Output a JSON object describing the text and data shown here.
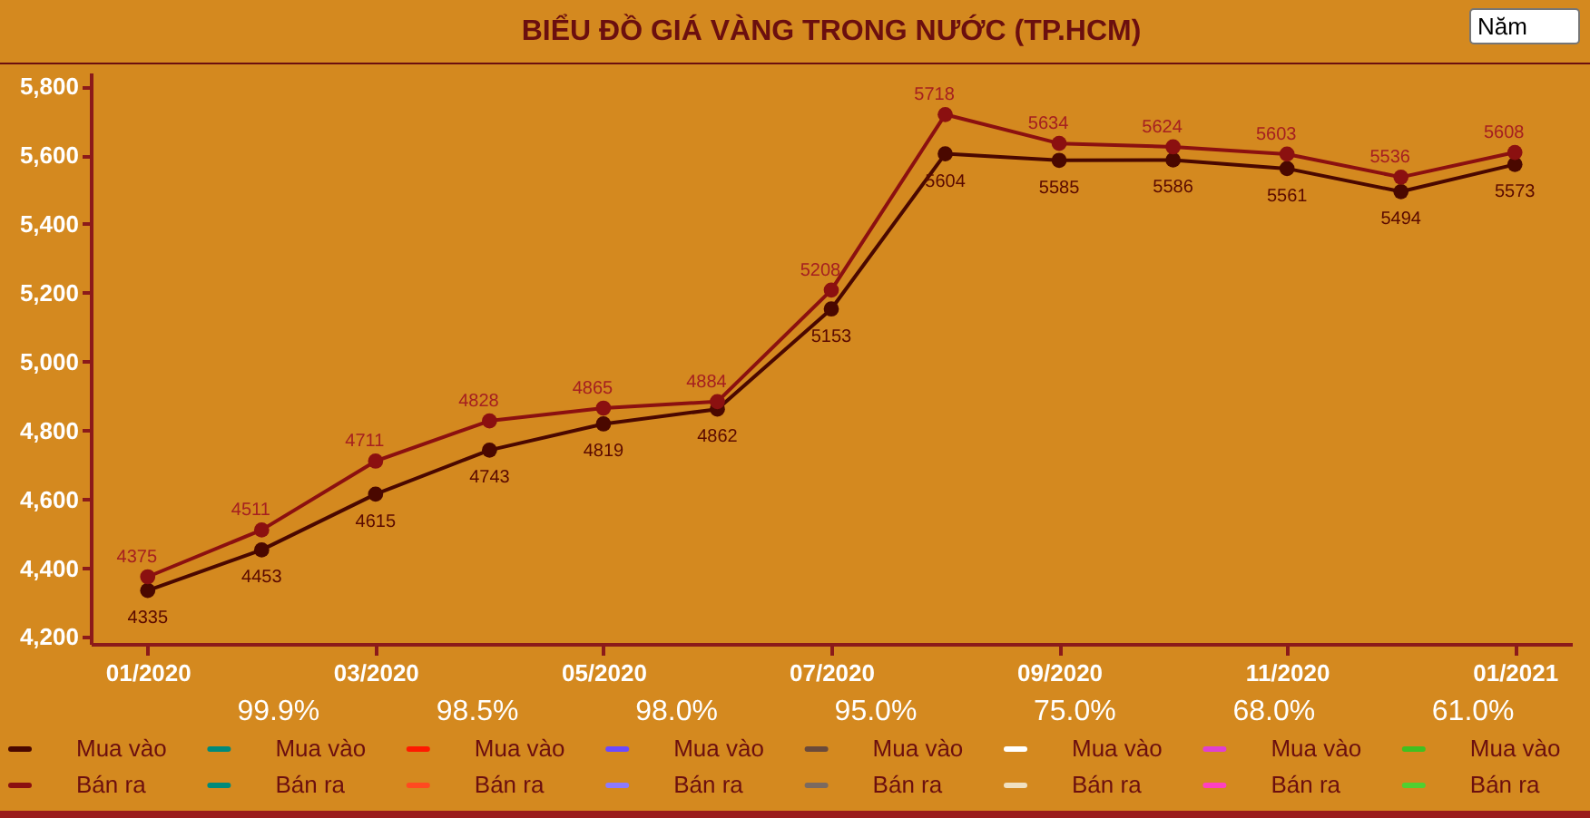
{
  "chart_data": {
    "type": "line",
    "title": "BIỂU ĐỒ GIÁ VÀNG TRONG NƯỚC (TP.HCM)",
    "categories": [
      "01/2020",
      null,
      "03/2020",
      null,
      "05/2020",
      null,
      "07/2020",
      null,
      "09/2020",
      null,
      "11/2020",
      null,
      "01/2021"
    ],
    "series": [
      {
        "name": "Mua vào",
        "color": "#4a0800",
        "values": [
          4335,
          4453,
          4615,
          4743,
          4819,
          4862,
          5153,
          5604,
          5585,
          5586,
          5561,
          5494,
          5573
        ]
      },
      {
        "name": "Bán ra",
        "color": "#8b1010",
        "values": [
          4375,
          4511,
          4711,
          4828,
          4865,
          4884,
          5208,
          5718,
          5634,
          5624,
          5603,
          5536,
          5608
        ]
      },
      {
        "name": "Mua vào",
        "color": "#008a7a",
        "values": [
          null,
          null,
          null,
          null,
          null,
          null,
          null,
          null,
          null,
          null,
          null,
          null,
          null
        ]
      },
      {
        "name": "Bán ra",
        "color": "#008a7a",
        "values": [
          null,
          null,
          null,
          null,
          null,
          null,
          null,
          null,
          null,
          null,
          null,
          null,
          null
        ]
      },
      {
        "name": "Mua vào",
        "color": "#ff1a00",
        "values": [
          null,
          null,
          null,
          null,
          null,
          null,
          null,
          null,
          null,
          null,
          null,
          null,
          null
        ]
      },
      {
        "name": "Bán ra",
        "color": "#ff4a20",
        "values": [
          null,
          null,
          null,
          null,
          null,
          null,
          null,
          null,
          null,
          null,
          null,
          null,
          null
        ]
      },
      {
        "name": "Mua vào",
        "color": "#6b4aff",
        "values": [
          null,
          null,
          null,
          null,
          null,
          null,
          null,
          null,
          null,
          null,
          null,
          null,
          null
        ]
      },
      {
        "name": "Bán ra",
        "color": "#8c7aff",
        "values": [
          null,
          null,
          null,
          null,
          null,
          null,
          null,
          null,
          null,
          null,
          null,
          null,
          null
        ]
      },
      {
        "name": "Mua vào",
        "color": "#6b4a3a",
        "values": [
          null,
          null,
          null,
          null,
          null,
          null,
          null,
          null,
          null,
          null,
          null,
          null,
          null
        ]
      },
      {
        "name": "Bán ra",
        "color": "#7a6a60",
        "values": [
          null,
          null,
          null,
          null,
          null,
          null,
          null,
          null,
          null,
          null,
          null,
          null,
          null
        ]
      },
      {
        "name": "Mua vào",
        "color": "#ffffff",
        "values": [
          null,
          null,
          null,
          null,
          null,
          null,
          null,
          null,
          null,
          null,
          null,
          null,
          null
        ]
      },
      {
        "name": "Bán ra",
        "color": "#f0e0c0",
        "values": [
          null,
          null,
          null,
          null,
          null,
          null,
          null,
          null,
          null,
          null,
          null,
          null,
          null
        ]
      },
      {
        "name": "Mua vào",
        "color": "#e040d0",
        "values": [
          null,
          null,
          null,
          null,
          null,
          null,
          null,
          null,
          null,
          null,
          null,
          null,
          null
        ]
      },
      {
        "name": "Bán ra",
        "color": "#ff40c0",
        "values": [
          null,
          null,
          null,
          null,
          null,
          null,
          null,
          null,
          null,
          null,
          null,
          null,
          null
        ]
      },
      {
        "name": "Mua vào",
        "color": "#40c020",
        "values": [
          null,
          null,
          null,
          null,
          null,
          null,
          null,
          null,
          null,
          null,
          null,
          null,
          null
        ]
      },
      {
        "name": "Bán ra",
        "color": "#50d030",
        "values": [
          null,
          null,
          null,
          null,
          null,
          null,
          null,
          null,
          null,
          null,
          null,
          null,
          null
        ]
      }
    ],
    "ylim": [
      4180,
      5840
    ],
    "yticks": [
      {
        "value": 4200,
        "label": "4,200"
      },
      {
        "value": 4400,
        "label": "4,400"
      },
      {
        "value": 4600,
        "label": "4,600"
      },
      {
        "value": 4800,
        "label": "4,800"
      },
      {
        "value": 5000,
        "label": "5,000"
      },
      {
        "value": 5200,
        "label": "5,200"
      },
      {
        "value": 5400,
        "label": "5,400"
      },
      {
        "value": 5600,
        "label": "5,600"
      },
      {
        "value": 5800,
        "label": "5,800"
      }
    ],
    "annotations": [
      "Năm",
      "99.9%",
      "98.5%",
      "98.0%",
      "95.0%",
      "75.0%",
      "68.0%",
      "61.0%"
    ],
    "data_labels": true,
    "marker": "circle",
    "line_style": "solid",
    "grid": false,
    "legend": "bottom"
  }
}
